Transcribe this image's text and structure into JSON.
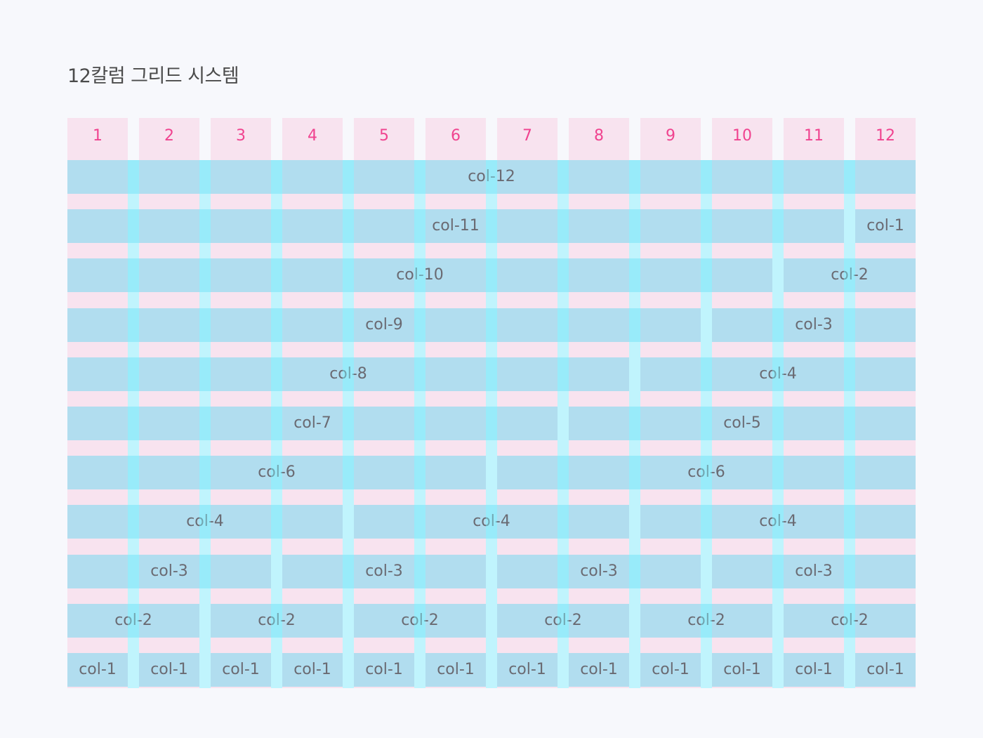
{
  "title": "12칼럼 그리드 시스템",
  "colors": {
    "background": "#f7f8fc",
    "column_guide": "#f8e3ef",
    "column_number": "#f0438f",
    "cell_fill": "#afe5f3",
    "cell_text": "#6a6a72"
  },
  "columns": [
    "1",
    "2",
    "3",
    "4",
    "5",
    "6",
    "7",
    "8",
    "9",
    "10",
    "11",
    "12"
  ],
  "rows": [
    [
      {
        "span": 12,
        "label": "col-12"
      }
    ],
    [
      {
        "span": 11,
        "label": "col-11"
      },
      {
        "span": 1,
        "label": "col-1"
      }
    ],
    [
      {
        "span": 10,
        "label": "col-10"
      },
      {
        "span": 2,
        "label": "col-2"
      }
    ],
    [
      {
        "span": 9,
        "label": "col-9"
      },
      {
        "span": 3,
        "label": "col-3"
      }
    ],
    [
      {
        "span": 8,
        "label": "col-8"
      },
      {
        "span": 4,
        "label": "col-4"
      }
    ],
    [
      {
        "span": 7,
        "label": "col-7"
      },
      {
        "span": 5,
        "label": "col-5"
      }
    ],
    [
      {
        "span": 6,
        "label": "col-6"
      },
      {
        "span": 6,
        "label": "col-6"
      }
    ],
    [
      {
        "span": 4,
        "label": "col-4"
      },
      {
        "span": 4,
        "label": "col-4"
      },
      {
        "span": 4,
        "label": "col-4"
      }
    ],
    [
      {
        "span": 3,
        "label": "col-3"
      },
      {
        "span": 3,
        "label": "col-3"
      },
      {
        "span": 3,
        "label": "col-3"
      },
      {
        "span": 3,
        "label": "col-3"
      }
    ],
    [
      {
        "span": 2,
        "label": "col-2"
      },
      {
        "span": 2,
        "label": "col-2"
      },
      {
        "span": 2,
        "label": "col-2"
      },
      {
        "span": 2,
        "label": "col-2"
      },
      {
        "span": 2,
        "label": "col-2"
      },
      {
        "span": 2,
        "label": "col-2"
      }
    ],
    [
      {
        "span": 1,
        "label": "col-1"
      },
      {
        "span": 1,
        "label": "col-1"
      },
      {
        "span": 1,
        "label": "col-1"
      },
      {
        "span": 1,
        "label": "col-1"
      },
      {
        "span": 1,
        "label": "col-1"
      },
      {
        "span": 1,
        "label": "col-1"
      },
      {
        "span": 1,
        "label": "col-1"
      },
      {
        "span": 1,
        "label": "col-1"
      },
      {
        "span": 1,
        "label": "col-1"
      },
      {
        "span": 1,
        "label": "col-1"
      },
      {
        "span": 1,
        "label": "col-1"
      },
      {
        "span": 1,
        "label": "col-1"
      }
    ]
  ]
}
